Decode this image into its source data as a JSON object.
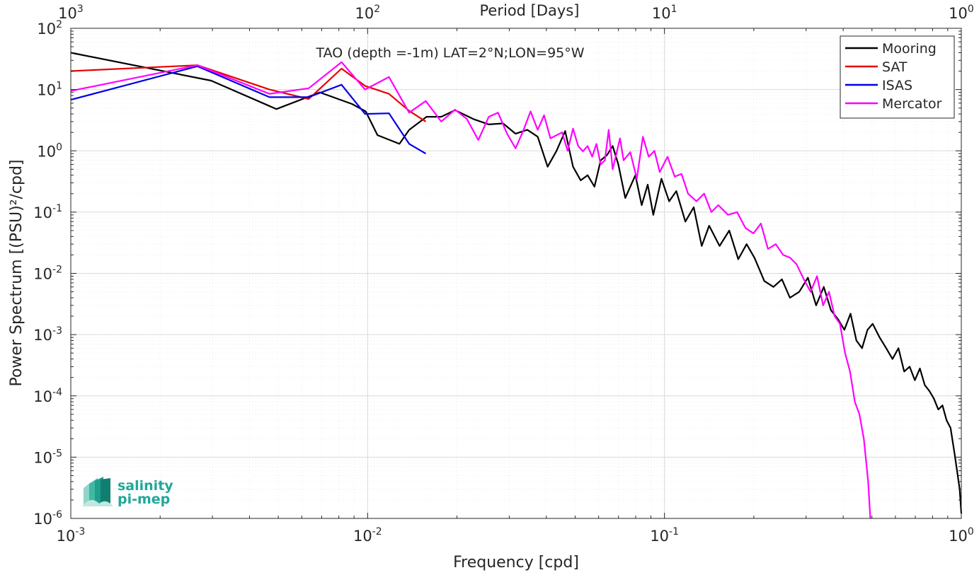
{
  "chart_data": {
    "type": "line",
    "title": "TAO (depth =-1m) LAT=2°N;LON=95°W",
    "xlabel": "Frequency [cpd]",
    "ylabel": "Power Spectrum [(PSU)²/cpd]",
    "top_axis_label": "Period [Days]",
    "x_scale": "log",
    "y_scale": "log",
    "xlim": [
      0.001,
      1
    ],
    "ylim": [
      1e-06,
      100
    ],
    "grid": true,
    "legend_position": "top-right",
    "x_ticks": [
      0.001,
      0.01,
      0.1,
      1
    ],
    "x_tick_labels": [
      {
        "base": "10",
        "exp": "-3"
      },
      {
        "base": "10",
        "exp": "-2"
      },
      {
        "base": "10",
        "exp": "-1"
      },
      {
        "base": "10",
        "exp": "0"
      }
    ],
    "top_ticks": [
      0.001,
      0.01,
      0.1,
      1
    ],
    "top_tick_labels": [
      {
        "base": "10",
        "exp": "3"
      },
      {
        "base": "10",
        "exp": "2"
      },
      {
        "base": "10",
        "exp": "1"
      },
      {
        "base": "10",
        "exp": "0"
      }
    ],
    "y_ticks": [
      1e-06,
      1e-05,
      0.0001,
      0.001,
      0.01,
      0.1,
      1,
      10,
      100
    ],
    "y_tick_labels": [
      {
        "base": "10",
        "exp": "-6"
      },
      {
        "base": "10",
        "exp": "-5"
      },
      {
        "base": "10",
        "exp": "-4"
      },
      {
        "base": "10",
        "exp": "-3"
      },
      {
        "base": "10",
        "exp": "-2"
      },
      {
        "base": "10",
        "exp": "-1"
      },
      {
        "base": "10",
        "exp": "0"
      },
      {
        "base": "10",
        "exp": "1"
      },
      {
        "base": "10",
        "exp": "2"
      }
    ],
    "series": [
      {
        "name": "Mooring",
        "color": "#000000",
        "x": [
          0.001,
          0.00297,
          0.00493,
          0.0069,
          0.00887,
          0.00985,
          0.0108,
          0.0128,
          0.0138,
          0.0158,
          0.0177,
          0.0197,
          0.0227,
          0.0256,
          0.0286,
          0.0315,
          0.0345,
          0.0374,
          0.0404,
          0.0433,
          0.0463,
          0.0492,
          0.0522,
          0.0551,
          0.0581,
          0.061,
          0.064,
          0.0669,
          0.0699,
          0.0738,
          0.0798,
          0.0838,
          0.0878,
          0.0917,
          0.0977,
          0.1037,
          0.1096,
          0.1176,
          0.1255,
          0.1335,
          0.1414,
          0.1533,
          0.1653,
          0.1772,
          0.1891,
          0.201,
          0.2169,
          0.2328,
          0.2487,
          0.2646,
          0.2845,
          0.3043,
          0.3242,
          0.344,
          0.3639,
          0.3838,
          0.4036,
          0.4235,
          0.4433,
          0.4632,
          0.483,
          0.5029,
          0.5307,
          0.5585,
          0.5863,
          0.6141,
          0.6419,
          0.6697,
          0.6975,
          0.7253,
          0.7531,
          0.7809,
          0.8087,
          0.8365,
          0.8643,
          0.8921,
          0.9199,
          0.9477,
          0.9676,
          0.9875,
          1.0
        ],
        "y": [
          40,
          14,
          4.8,
          9,
          5.8,
          4.4,
          1.8,
          1.3,
          2.2,
          3.6,
          3.6,
          4.6,
          3.3,
          2.7,
          2.8,
          1.9,
          2.2,
          1.7,
          0.55,
          1.0,
          2.1,
          0.55,
          0.33,
          0.4,
          0.26,
          0.7,
          0.85,
          1.2,
          0.6,
          0.17,
          0.4,
          0.13,
          0.28,
          0.09,
          0.35,
          0.15,
          0.22,
          0.07,
          0.12,
          0.028,
          0.06,
          0.028,
          0.05,
          0.017,
          0.03,
          0.018,
          0.0075,
          0.006,
          0.008,
          0.004,
          0.005,
          0.0085,
          0.003,
          0.006,
          0.0025,
          0.0018,
          0.0012,
          0.0022,
          0.0008,
          0.0006,
          0.0012,
          0.0015,
          0.0009,
          0.0006,
          0.0004,
          0.0006,
          0.00025,
          0.0003,
          0.00018,
          0.00028,
          0.00015,
          0.00012,
          9e-05,
          6e-05,
          7e-05,
          4e-05,
          3e-05,
          1.2e-05,
          6e-06,
          3e-06,
          1.2e-06
        ]
      },
      {
        "name": "SAT",
        "color": "#e60000",
        "x": [
          0.001,
          0.00267,
          0.00467,
          0.00633,
          0.00817,
          0.0098,
          0.0118,
          0.0138,
          0.0157
        ],
        "y": [
          20,
          25,
          10,
          7,
          22,
          11.5,
          8.5,
          4.5,
          3
        ]
      },
      {
        "name": "ISAS",
        "color": "#0000e6",
        "x": [
          0.001,
          0.00267,
          0.00467,
          0.00633,
          0.00817,
          0.0098,
          0.0118,
          0.0138,
          0.0157
        ],
        "y": [
          6.8,
          24,
          7.5,
          7.5,
          12,
          4.0,
          4.1,
          1.3,
          0.9
        ]
      },
      {
        "name": "Mercator",
        "color": "#ff00ff",
        "x": [
          0.001,
          0.00267,
          0.00467,
          0.00633,
          0.00817,
          0.0098,
          0.0118,
          0.0138,
          0.0157,
          0.0177,
          0.0197,
          0.0216,
          0.0236,
          0.0256,
          0.0275,
          0.0295,
          0.0315,
          0.0334,
          0.0354,
          0.0374,
          0.0393,
          0.0413,
          0.0433,
          0.0452,
          0.0472,
          0.0492,
          0.0512,
          0.0531,
          0.0551,
          0.0571,
          0.059,
          0.061,
          0.063,
          0.0649,
          0.0669,
          0.0689,
          0.0708,
          0.0728,
          0.0767,
          0.0807,
          0.0846,
          0.0885,
          0.0925,
          0.0964,
          0.1024,
          0.1083,
          0.1142,
          0.1201,
          0.1281,
          0.136,
          0.1439,
          0.1518,
          0.1637,
          0.1756,
          0.1875,
          0.1994,
          0.2113,
          0.2232,
          0.2371,
          0.251,
          0.2649,
          0.2788,
          0.2947,
          0.3106,
          0.3265,
          0.3424,
          0.3583,
          0.3742,
          0.3901,
          0.406,
          0.4219,
          0.4378,
          0.4537,
          0.4696,
          0.4855,
          0.4938
        ],
        "y": [
          9.5,
          25,
          8.5,
          10.5,
          28,
          10,
          16,
          4.2,
          6.5,
          3.0,
          4.7,
          3.3,
          1.5,
          3.6,
          4.2,
          1.9,
          1.1,
          2.1,
          4.4,
          2.2,
          3.8,
          1.6,
          1.8,
          2.0,
          1.0,
          2.3,
          1.2,
          0.98,
          1.2,
          0.8,
          1.3,
          0.6,
          0.7,
          2.2,
          0.5,
          0.9,
          1.6,
          0.7,
          0.95,
          0.35,
          1.7,
          0.8,
          1.0,
          0.45,
          0.8,
          0.38,
          0.42,
          0.2,
          0.15,
          0.2,
          0.1,
          0.13,
          0.09,
          0.1,
          0.055,
          0.045,
          0.065,
          0.025,
          0.03,
          0.02,
          0.018,
          0.014,
          0.008,
          0.005,
          0.009,
          0.003,
          0.005,
          0.002,
          0.0015,
          0.0005,
          0.00025,
          8e-05,
          5e-05,
          2e-05,
          4e-06,
          1e-06
        ]
      }
    ]
  },
  "logo": {
    "line1": "salinity",
    "line2": "pi-mep",
    "color": "#1fa899"
  }
}
